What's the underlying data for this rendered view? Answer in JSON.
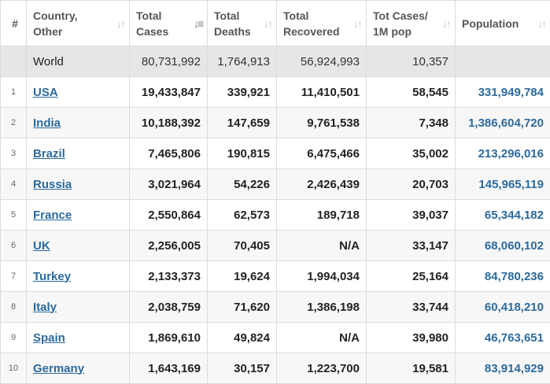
{
  "headers": {
    "idx": "#",
    "country": [
      "Country,",
      "Other"
    ],
    "total_cases": [
      "Total",
      "Cases"
    ],
    "total_deaths": [
      "Total",
      "Deaths"
    ],
    "total_recovered": [
      "Total",
      "Recovered"
    ],
    "tot_cases_1m": [
      "Tot Cases/",
      "1M pop"
    ],
    "population": [
      "Population"
    ]
  },
  "world": {
    "country": "World",
    "total_cases": "80,731,992",
    "total_deaths": "1,764,913",
    "total_recovered": "56,924,993",
    "tot_cases_1m": "10,357",
    "population": ""
  },
  "rows": [
    {
      "idx": "1",
      "country": "USA",
      "total_cases": "19,433,847",
      "total_deaths": "339,921",
      "total_recovered": "11,410,501",
      "tot_cases_1m": "58,545",
      "population": "331,949,784"
    },
    {
      "idx": "2",
      "country": "India",
      "total_cases": "10,188,392",
      "total_deaths": "147,659",
      "total_recovered": "9,761,538",
      "tot_cases_1m": "7,348",
      "population": "1,386,604,720"
    },
    {
      "idx": "3",
      "country": "Brazil",
      "total_cases": "7,465,806",
      "total_deaths": "190,815",
      "total_recovered": "6,475,466",
      "tot_cases_1m": "35,002",
      "population": "213,296,016"
    },
    {
      "idx": "4",
      "country": "Russia",
      "total_cases": "3,021,964",
      "total_deaths": "54,226",
      "total_recovered": "2,426,439",
      "tot_cases_1m": "20,703",
      "population": "145,965,119"
    },
    {
      "idx": "5",
      "country": "France",
      "total_cases": "2,550,864",
      "total_deaths": "62,573",
      "total_recovered": "189,718",
      "tot_cases_1m": "39,037",
      "population": "65,344,182"
    },
    {
      "idx": "6",
      "country": "UK",
      "total_cases": "2,256,005",
      "total_deaths": "70,405",
      "total_recovered": "N/A",
      "tot_cases_1m": "33,147",
      "population": "68,060,102"
    },
    {
      "idx": "7",
      "country": "Turkey",
      "total_cases": "2,133,373",
      "total_deaths": "19,624",
      "total_recovered": "1,994,034",
      "tot_cases_1m": "25,164",
      "population": "84,780,236"
    },
    {
      "idx": "8",
      "country": "Italy",
      "total_cases": "2,038,759",
      "total_deaths": "71,620",
      "total_recovered": "1,386,198",
      "tot_cases_1m": "33,744",
      "population": "60,418,210"
    },
    {
      "idx": "9",
      "country": "Spain",
      "total_cases": "1,869,610",
      "total_deaths": "49,824",
      "total_recovered": "N/A",
      "tot_cases_1m": "39,980",
      "population": "46,763,651"
    },
    {
      "idx": "10",
      "country": "Germany",
      "total_cases": "1,643,169",
      "total_deaths": "30,157",
      "total_recovered": "1,223,700",
      "tot_cases_1m": "19,581",
      "population": "83,914,929"
    }
  ],
  "colors": {
    "link": "#2b6a9e",
    "world_row_bg": "#e6e6e6",
    "border": "#dcdcdc"
  },
  "icons": {
    "sort": "sort-arrows-icon",
    "sort_active": "sort-desc-icon"
  }
}
